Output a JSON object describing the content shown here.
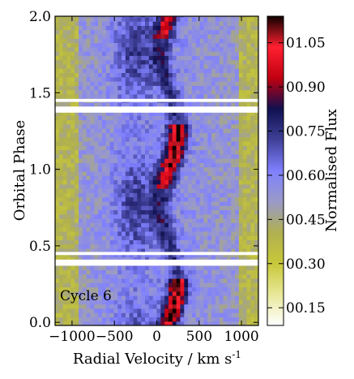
{
  "chart_data": {
    "type": "heatmap",
    "title": "",
    "xlabel": "Radial Velocity / km s",
    "xlabel_superscript": "-1",
    "ylabel": "Orbital Phase",
    "xlim": [
      -1200,
      1200
    ],
    "ylim": [
      -0.02,
      2.0
    ],
    "x_ticks": [
      -1000,
      -500,
      0,
      500,
      1000
    ],
    "x_tick_labels": [
      "−1000",
      "−500",
      "0",
      "500",
      "1000"
    ],
    "y_ticks": [
      0.0,
      0.5,
      1.0,
      1.5,
      2.0
    ],
    "y_tick_labels": [
      "0.0",
      "0.5",
      "1.0",
      "1.5",
      "2.0"
    ],
    "gaps": [
      [
        0.37,
        0.41
      ],
      [
        0.44,
        0.46
      ],
      [
        1.37,
        1.41
      ],
      [
        1.44,
        1.46
      ]
    ],
    "annotation": "Cycle 6",
    "colorbar": {
      "label": "Normalised Flux",
      "range": [
        0.09,
        1.14
      ],
      "ticks": [
        0.15,
        0.3,
        0.45,
        0.6,
        0.75,
        0.9,
        1.05
      ],
      "tick_labels": [
        "00.15",
        "00.30",
        "00.45",
        "00.60",
        "00.75",
        "00.90",
        "01.05"
      ],
      "colors": [
        "#ffffff",
        "#e8e89a",
        "#c8c83a",
        "#b0b050",
        "#9a9ac8",
        "#8080ff",
        "#404098",
        "#101050",
        "#c00010",
        "#ff2030",
        "#100000"
      ]
    },
    "features": {
      "s_wave_center_kms": 150,
      "s_wave_amplitude_kms": 100,
      "peak_flux": 1.1,
      "background_flux": 0.4
    }
  }
}
